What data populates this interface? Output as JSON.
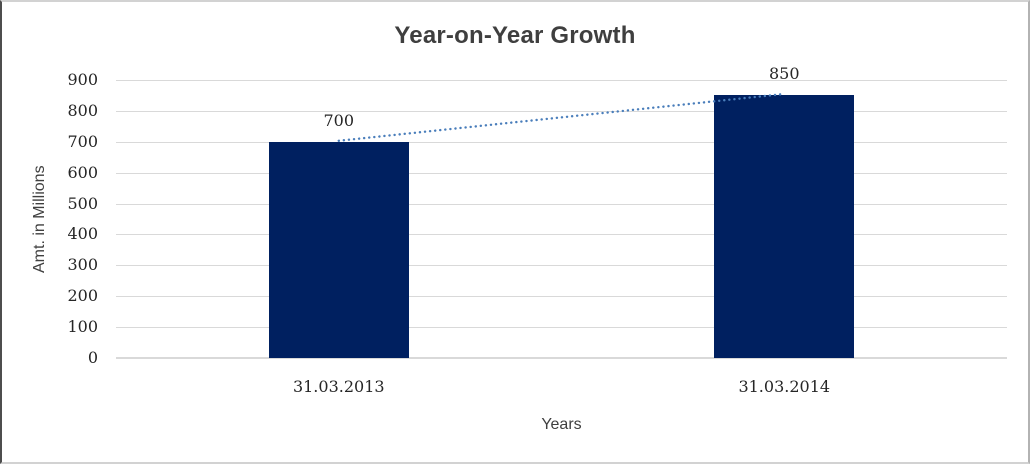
{
  "chart_data": {
    "type": "bar",
    "title": "Year-on-Year Growth",
    "categories": [
      "31.03.2013",
      "31.03.2014"
    ],
    "values": [
      700,
      850
    ],
    "data_labels": [
      "700",
      "850"
    ],
    "xlabel": "Years",
    "ylabel": "Amt. in Millions",
    "ylim": [
      0,
      900
    ],
    "yticks": [
      0,
      100,
      200,
      300,
      400,
      500,
      600,
      700,
      800,
      900
    ],
    "grid": "horizontal",
    "legend": "none",
    "trendline": {
      "type": "linear",
      "style": "dotted",
      "connects": [
        700,
        850
      ]
    }
  },
  "colors": {
    "bar": "#002060",
    "trendline": "#4a7ebb",
    "gridline": "#d9d9d9",
    "axis_line": "#d9d9d9",
    "title_text": "#3f3f3f",
    "axis_title_text": "#3f3f3f",
    "tick_text": "#262626",
    "data_label_text": "#262626",
    "category_text": "#262626",
    "background": "#ffffff"
  }
}
